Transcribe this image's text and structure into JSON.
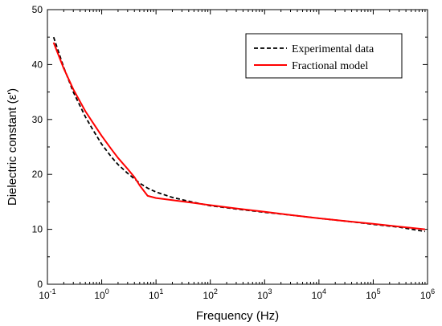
{
  "chart_data": {
    "type": "line",
    "xlabel": "Frequency (Hz)",
    "ylabel": "Dielectric constant (ε')",
    "x_scale": "log",
    "xlim": [
      0.1,
      1000000
    ],
    "ylim": [
      0,
      50
    ],
    "x_ticks": [
      {
        "value": 0.1,
        "base": "10",
        "exp": "-1"
      },
      {
        "value": 1,
        "base": "10",
        "exp": "0"
      },
      {
        "value": 10,
        "base": "10",
        "exp": "1"
      },
      {
        "value": 100,
        "base": "10",
        "exp": "2"
      },
      {
        "value": 1000,
        "base": "10",
        "exp": "3"
      },
      {
        "value": 10000,
        "base": "10",
        "exp": "4"
      },
      {
        "value": 100000,
        "base": "10",
        "exp": "5"
      },
      {
        "value": 1000000,
        "base": "10",
        "exp": "6"
      }
    ],
    "y_ticks": [
      "0",
      "10",
      "20",
      "30",
      "40",
      "50"
    ],
    "grid": false,
    "legend_position": "top-right",
    "series": [
      {
        "name": "Experimental data",
        "color": "#000000",
        "dash": true,
        "x": [
          0.13,
          0.2,
          0.3,
          0.5,
          0.7,
          1,
          1.5,
          2,
          3,
          4,
          5,
          7,
          10,
          20,
          50,
          100,
          300,
          1000,
          3000,
          10000,
          30000,
          100000,
          300000,
          900000
        ],
        "y": [
          45,
          39.5,
          35,
          30.5,
          28,
          25.5,
          23.2,
          21.8,
          20.2,
          19.2,
          18.4,
          17.5,
          16.8,
          15.8,
          14.9,
          14.3,
          13.7,
          13.1,
          12.6,
          12,
          11.5,
          10.9,
          10.4,
          9.6
        ]
      },
      {
        "name": "Fractional model",
        "color": "#ff0000",
        "dash": false,
        "x": [
          0.13,
          0.2,
          0.3,
          0.5,
          0.7,
          1,
          1.5,
          2,
          3,
          4,
          5,
          7,
          10,
          20,
          50,
          100,
          300,
          1000,
          3000,
          10000,
          30000,
          100000,
          300000,
          900000
        ],
        "y": [
          44,
          39.3,
          35.5,
          31.5,
          29.3,
          27,
          24.6,
          23,
          21,
          19.5,
          18,
          16.1,
          15.7,
          15.3,
          14.8,
          14.4,
          13.8,
          13.2,
          12.6,
          12,
          11.5,
          11,
          10.5,
          10
        ]
      }
    ]
  }
}
